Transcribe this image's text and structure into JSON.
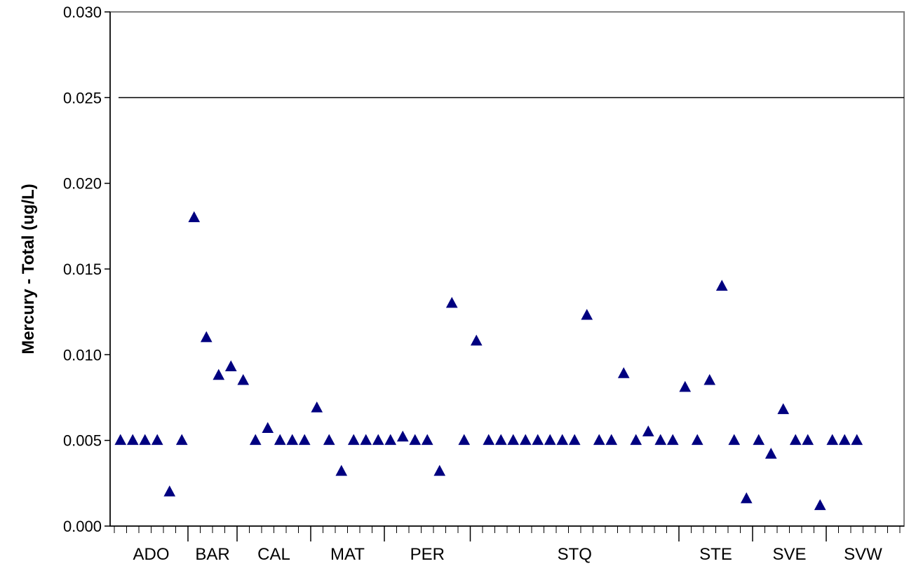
{
  "chart_data": {
    "type": "scatter",
    "title": "",
    "xlabel": "",
    "ylabel": "Mercury - Total (ug/L)",
    "ylim": [
      0,
      0.03
    ],
    "yticks": [
      "0.000",
      "0.005",
      "0.010",
      "0.015",
      "0.020",
      "0.025",
      "0.030"
    ],
    "grid": false,
    "reference_line": {
      "y": 0.025,
      "color": "#000000"
    },
    "marker": {
      "shape": "triangle",
      "color": "#000080"
    },
    "x_count": 64,
    "groups": [
      {
        "label": "ADO",
        "start": 0,
        "end": 6
      },
      {
        "label": "BAR",
        "start": 6,
        "end": 10
      },
      {
        "label": "CAL",
        "start": 10,
        "end": 16
      },
      {
        "label": "MAT",
        "start": 16,
        "end": 22
      },
      {
        "label": "PER",
        "start": 22,
        "end": 29
      },
      {
        "label": "STQ",
        "start": 29,
        "end": 46
      },
      {
        "label": "STE",
        "start": 46,
        "end": 52
      },
      {
        "label": "SVE",
        "start": 52,
        "end": 58
      },
      {
        "label": "SVW",
        "start": 58,
        "end": 64
      }
    ],
    "points": [
      {
        "x": 0,
        "y": 0.005
      },
      {
        "x": 1,
        "y": 0.005
      },
      {
        "x": 2,
        "y": 0.005
      },
      {
        "x": 3,
        "y": 0.005
      },
      {
        "x": 4,
        "y": 0.002
      },
      {
        "x": 5,
        "y": 0.005
      },
      {
        "x": 6,
        "y": 0.018
      },
      {
        "x": 7,
        "y": 0.011
      },
      {
        "x": 8,
        "y": 0.0088
      },
      {
        "x": 9,
        "y": 0.0093
      },
      {
        "x": 10,
        "y": 0.0085
      },
      {
        "x": 11,
        "y": 0.005
      },
      {
        "x": 12,
        "y": 0.0057
      },
      {
        "x": 13,
        "y": 0.005
      },
      {
        "x": 14,
        "y": 0.005
      },
      {
        "x": 15,
        "y": 0.005
      },
      {
        "x": 16,
        "y": 0.0069
      },
      {
        "x": 17,
        "y": 0.005
      },
      {
        "x": 18,
        "y": 0.0032
      },
      {
        "x": 19,
        "y": 0.005
      },
      {
        "x": 20,
        "y": 0.005
      },
      {
        "x": 21,
        "y": 0.005
      },
      {
        "x": 22,
        "y": 0.005
      },
      {
        "x": 23,
        "y": 0.0052
      },
      {
        "x": 24,
        "y": 0.005
      },
      {
        "x": 25,
        "y": 0.005
      },
      {
        "x": 26,
        "y": 0.0032
      },
      {
        "x": 27,
        "y": 0.013
      },
      {
        "x": 28,
        "y": 0.005
      },
      {
        "x": 29,
        "y": 0.0108
      },
      {
        "x": 30,
        "y": 0.005
      },
      {
        "x": 31,
        "y": 0.005
      },
      {
        "x": 32,
        "y": 0.005
      },
      {
        "x": 33,
        "y": 0.005
      },
      {
        "x": 34,
        "y": 0.005
      },
      {
        "x": 35,
        "y": 0.005
      },
      {
        "x": 36,
        "y": 0.005
      },
      {
        "x": 37,
        "y": 0.005
      },
      {
        "x": 38,
        "y": 0.0123
      },
      {
        "x": 39,
        "y": 0.005
      },
      {
        "x": 40,
        "y": 0.005
      },
      {
        "x": 41,
        "y": 0.0089
      },
      {
        "x": 42,
        "y": 0.005
      },
      {
        "x": 43,
        "y": 0.0055
      },
      {
        "x": 44,
        "y": 0.005
      },
      {
        "x": 45,
        "y": 0.005
      },
      {
        "x": 46,
        "y": 0.0081
      },
      {
        "x": 47,
        "y": 0.005
      },
      {
        "x": 48,
        "y": 0.0085
      },
      {
        "x": 49,
        "y": 0.014
      },
      {
        "x": 50,
        "y": 0.005
      },
      {
        "x": 51,
        "y": 0.0016
      },
      {
        "x": 52,
        "y": 0.005
      },
      {
        "x": 53,
        "y": 0.0042
      },
      {
        "x": 54,
        "y": 0.0068
      },
      {
        "x": 55,
        "y": 0.005
      },
      {
        "x": 56,
        "y": 0.005
      },
      {
        "x": 57,
        "y": 0.0012
      },
      {
        "x": 58,
        "y": 0.005
      },
      {
        "x": 59,
        "y": 0.005
      },
      {
        "x": 60,
        "y": 0.005
      }
    ]
  }
}
